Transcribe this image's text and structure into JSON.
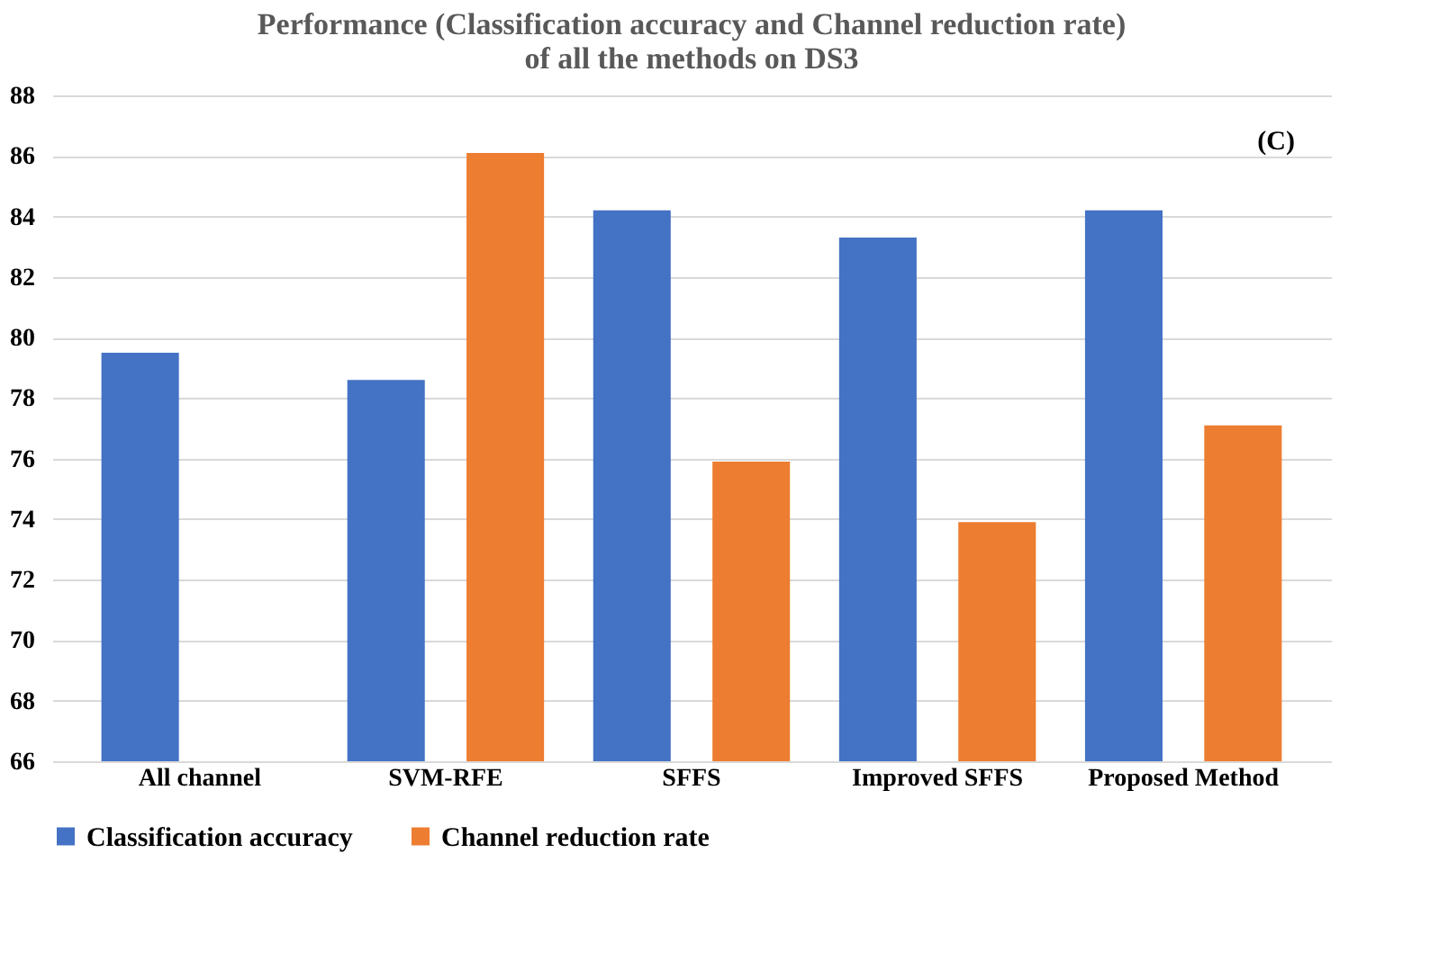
{
  "chart_data": {
    "type": "bar",
    "title": "Performance (Classification accuracy and Channel reduction rate) of all the methods on DS3",
    "categories": [
      "All channel",
      "SVM-RFE",
      "SFFS",
      "Improved SFFS",
      "Proposed Method"
    ],
    "series": [
      {
        "name": "Classification accuracy",
        "color": "#4472c4",
        "values": [
          79.5,
          78.6,
          84.2,
          83.3,
          84.2
        ]
      },
      {
        "name": "Channel reduction rate",
        "color": "#ed7d31",
        "values": [
          null,
          86.1,
          75.9,
          73.9,
          77.1
        ]
      }
    ],
    "ylim": [
      66,
      88
    ],
    "yticks": [
      66,
      68,
      70,
      72,
      74,
      76,
      78,
      80,
      82,
      84,
      86,
      88
    ],
    "grid": "y",
    "legend": "bottom",
    "annotations": [
      "(C)"
    ]
  }
}
